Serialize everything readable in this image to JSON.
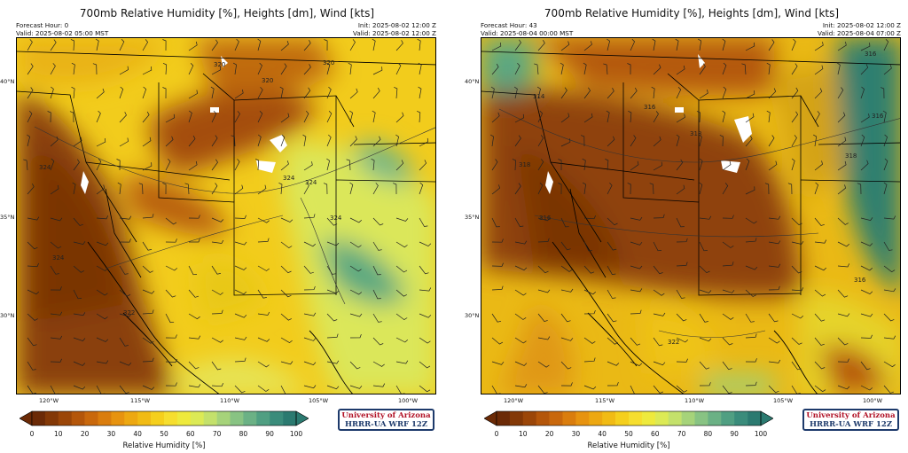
{
  "panels": [
    {
      "title": "700mb Relative Humidity [%], Heights [dm], Wind [kts]",
      "forecast_hour": "Forecast Hour: 0",
      "valid_local": "Valid: 2025-08-02 05:00 MST",
      "init": "Init: 2025-08-02 12:00 Z",
      "valid_utc": "Valid: 2025-08-02 12:00 Z",
      "contour_labels": [
        "320",
        "320",
        "320",
        "324",
        "324",
        "324",
        "324",
        "324",
        "322"
      ]
    },
    {
      "title": "700mb Relative Humidity [%], Heights [dm], Wind [kts]",
      "forecast_hour": "Forecast Hour: 43",
      "valid_local": "Valid: 2025-08-04 00:00 MST",
      "init": "Init: 2025-08-02 12:00 Z",
      "valid_utc": "Valid: 2025-08-04 07:00 Z",
      "contour_labels": [
        "314",
        "316",
        "316",
        "318",
        "316",
        "318",
        "318",
        "316",
        "316",
        "322"
      ]
    }
  ],
  "lat_labels": [
    "40°N",
    "35°N",
    "30°N"
  ],
  "lon_labels": [
    "120°W",
    "115°W",
    "110°W",
    "105°W",
    "100°W"
  ],
  "colorbar": {
    "ticks": [
      "0",
      "10",
      "20",
      "30",
      "40",
      "50",
      "60",
      "70",
      "80",
      "90",
      "100"
    ],
    "label": "Relative Humidity [%]",
    "colors": [
      "#6b2a06",
      "#833806",
      "#9b4608",
      "#b4560a",
      "#c9680c",
      "#da7d0d",
      "#e7930f",
      "#eda811",
      "#f1bb14",
      "#f5cf1c",
      "#f6de2e",
      "#eeea3c",
      "#dcea55",
      "#c4e16b",
      "#a6d37a",
      "#88c383",
      "#6bb185",
      "#509f82",
      "#3a8c7b",
      "#2b7a70"
    ]
  },
  "brand": {
    "line1": "University of Arizona",
    "line2": "HRRR-UA WRF 12Z"
  },
  "map": {
    "land_colors": {
      "dry": "#8a3f07",
      "mid": "#dd8a10",
      "moist": "#f2d020",
      "wet": "#3a8c74",
      "snow": "#ffffff"
    }
  }
}
